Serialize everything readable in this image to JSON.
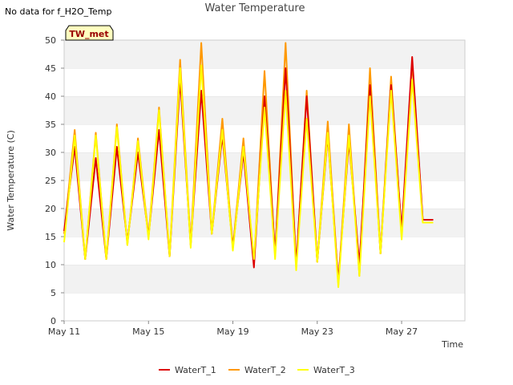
{
  "note": "No data for f_H2O_Temp",
  "chart_data": {
    "type": "line",
    "title": "Water Temperature",
    "xlabel": "Time",
    "ylabel": "Water Temperature (C)",
    "site_badge": "TW_met",
    "ylim": [
      0,
      50
    ],
    "yticks": [
      0,
      5,
      10,
      15,
      20,
      25,
      30,
      35,
      40,
      45,
      50
    ],
    "xlim": [
      "2024-05-11",
      "2024-05-30"
    ],
    "xticks": [
      {
        "date": "2024-05-11",
        "label": "May 11"
      },
      {
        "date": "2024-05-15",
        "label": "May 15"
      },
      {
        "date": "2024-05-19",
        "label": "May 19"
      },
      {
        "date": "2024-05-23",
        "label": "May 23"
      },
      {
        "date": "2024-05-27",
        "label": "May 27"
      }
    ],
    "grid": "horizontal bands",
    "legend_position": "bottom",
    "series": [
      {
        "name": "WaterT_1",
        "color": "#dd0000",
        "x": [
          "2024-05-11",
          "2024-05-11 12:00",
          "2024-05-12",
          "2024-05-12 12:00",
          "2024-05-13",
          "2024-05-13 12:00",
          "2024-05-14",
          "2024-05-14 12:00",
          "2024-05-15",
          "2024-05-15 12:00",
          "2024-05-16",
          "2024-05-16 12:00",
          "2024-05-17",
          "2024-05-17 12:00",
          "2024-05-18",
          "2024-05-18 12:00",
          "2024-05-19",
          "2024-05-19 12:00",
          "2024-05-20",
          "2024-05-20 12:00",
          "2024-05-21",
          "2024-05-21 12:00",
          "2024-05-22",
          "2024-05-22 12:00",
          "2024-05-23",
          "2024-05-23 12:00",
          "2024-05-24",
          "2024-05-24 12:00",
          "2024-05-25",
          "2024-05-25 12:00",
          "2024-05-26",
          "2024-05-26 12:00",
          "2024-05-27",
          "2024-05-27 12:00",
          "2024-05-28",
          "2024-05-28 12:00"
        ],
        "y": [
          16,
          31,
          11,
          29,
          11,
          31,
          14,
          30,
          15,
          34,
          11.5,
          43,
          13.5,
          41,
          15.5,
          33,
          13,
          30,
          9.5,
          40,
          12,
          45,
          10,
          40,
          10.5,
          33,
          7,
          32,
          10,
          42,
          12,
          42,
          16,
          47,
          18,
          18
        ]
      },
      {
        "name": "WaterT_2",
        "color": "#ff9900",
        "x": [
          "2024-05-11",
          "2024-05-11 12:00",
          "2024-05-12",
          "2024-05-12 12:00",
          "2024-05-13",
          "2024-05-13 12:00",
          "2024-05-14",
          "2024-05-14 12:00",
          "2024-05-15",
          "2024-05-15 12:00",
          "2024-05-16",
          "2024-05-16 12:00",
          "2024-05-17",
          "2024-05-17 12:00",
          "2024-05-18",
          "2024-05-18 12:00",
          "2024-05-19",
          "2024-05-19 12:00",
          "2024-05-20",
          "2024-05-20 12:00",
          "2024-05-21",
          "2024-05-21 12:00",
          "2024-05-22",
          "2024-05-22 12:00",
          "2024-05-23",
          "2024-05-23 12:00",
          "2024-05-24",
          "2024-05-24 12:00",
          "2024-05-25",
          "2024-05-25 12:00",
          "2024-05-26",
          "2024-05-26 12:00",
          "2024-05-27",
          "2024-05-27 12:00",
          "2024-05-28",
          "2024-05-28 12:00"
        ],
        "y": [
          15.5,
          34,
          11,
          33.5,
          11,
          35,
          13.5,
          32.5,
          15,
          38,
          11.5,
          46.5,
          13.5,
          49.5,
          15.5,
          36,
          13,
          32.5,
          10,
          44.5,
          11.5,
          49.5,
          9.5,
          41,
          10.5,
          35.5,
          6.5,
          35,
          8,
          45,
          12,
          43.5,
          15.5,
          46,
          18,
          18
        ]
      },
      {
        "name": "WaterT_3",
        "color": "#ffff00",
        "x": [
          "2024-05-11",
          "2024-05-11 12:00",
          "2024-05-12",
          "2024-05-12 12:00",
          "2024-05-13",
          "2024-05-13 12:00",
          "2024-05-14",
          "2024-05-14 12:00",
          "2024-05-15",
          "2024-05-15 12:00",
          "2024-05-16",
          "2024-05-16 12:00",
          "2024-05-17",
          "2024-05-17 12:00",
          "2024-05-18",
          "2024-05-18 12:00",
          "2024-05-19",
          "2024-05-19 12:00",
          "2024-05-20",
          "2024-05-20 12:00",
          "2024-05-21",
          "2024-05-21 12:00",
          "2024-05-22",
          "2024-05-22 12:00",
          "2024-05-23",
          "2024-05-23 12:00",
          "2024-05-24",
          "2024-05-24 12:00",
          "2024-05-25",
          "2024-05-25 12:00",
          "2024-05-26",
          "2024-05-26 12:00",
          "2024-05-27",
          "2024-05-27 12:00",
          "2024-05-28",
          "2024-05-28 12:00"
        ],
        "y": [
          14,
          33,
          11,
          33,
          11,
          34.5,
          13.5,
          32,
          14.5,
          37.5,
          11.5,
          45,
          13,
          45.5,
          15.5,
          34,
          12.5,
          31,
          11,
          38,
          11,
          41,
          9,
          36,
          10.5,
          33.5,
          6,
          33,
          8,
          40,
          12,
          41,
          14.5,
          43,
          17.5,
          17.5
        ]
      }
    ]
  }
}
